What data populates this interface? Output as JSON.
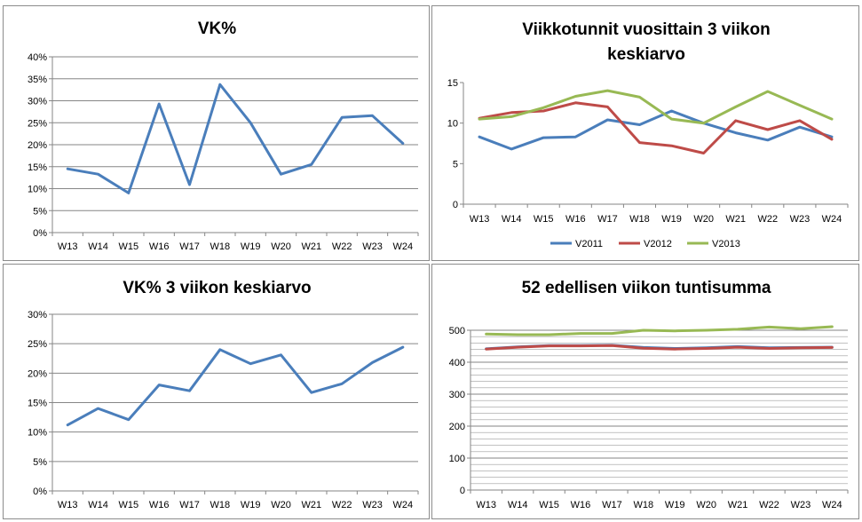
{
  "colors": {
    "blue": "#4a7ebb",
    "red": "#be4b48",
    "green": "#98b954",
    "grid": "#868686",
    "axis": "#868686"
  },
  "chart_data": [
    {
      "id": "vk",
      "type": "line",
      "title": [
        "VK%"
      ],
      "categories": [
        "W13",
        "W14",
        "W15",
        "W16",
        "W17",
        "W18",
        "W19",
        "W20",
        "W21",
        "W22",
        "W23",
        "W24"
      ],
      "ylim": [
        0,
        40
      ],
      "ystep": 5,
      "yformat": "percent",
      "grid": true,
      "legend": "none",
      "series": [
        {
          "color": "#4a7ebb",
          "values": [
            14.5,
            13.3,
            9.0,
            29.3,
            10.9,
            33.7,
            25.0,
            13.3,
            15.5,
            26.2,
            26.6,
            20.3
          ]
        }
      ]
    },
    {
      "id": "viikkotunnit",
      "type": "line",
      "title": [
        "Viikkotunnit vuosittain 3 viikon",
        "keskiarvo"
      ],
      "categories": [
        "W13",
        "W14",
        "W15",
        "W16",
        "W17",
        "W18",
        "W19",
        "W20",
        "W21",
        "W22",
        "W23",
        "W24"
      ],
      "ylim": [
        0,
        15
      ],
      "ystep": 5,
      "yformat": "number",
      "grid": false,
      "legend": "bottom",
      "series": [
        {
          "name": "V2011",
          "color": "#4a7ebb",
          "values": [
            8.3,
            6.8,
            8.2,
            8.3,
            10.4,
            9.8,
            11.5,
            10.0,
            8.8,
            7.9,
            9.5,
            8.3
          ]
        },
        {
          "name": "V2012",
          "color": "#be4b48",
          "values": [
            10.6,
            11.3,
            11.5,
            12.5,
            12.0,
            7.6,
            7.2,
            6.3,
            10.3,
            9.2,
            10.3,
            8.0
          ]
        },
        {
          "name": "V2013",
          "color": "#98b954",
          "values": [
            10.5,
            10.8,
            11.9,
            13.3,
            14.0,
            13.2,
            10.5,
            10.0,
            12.0,
            13.9,
            12.2,
            10.5
          ]
        }
      ]
    },
    {
      "id": "vk3",
      "type": "line",
      "title": [
        "VK% 3 viikon keskiarvo"
      ],
      "categories": [
        "W13",
        "W14",
        "W15",
        "W16",
        "W17",
        "W18",
        "W19",
        "W20",
        "W21",
        "W22",
        "W23",
        "W24"
      ],
      "ylim": [
        0,
        30
      ],
      "ystep": 5,
      "yformat": "percent",
      "grid": true,
      "legend": "none",
      "series": [
        {
          "color": "#4a7ebb",
          "values": [
            11.2,
            14.0,
            12.1,
            18.0,
            17.0,
            24.0,
            21.6,
            23.1,
            16.7,
            18.2,
            21.8,
            24.4
          ]
        }
      ]
    },
    {
      "id": "tuntisumma",
      "type": "line",
      "title": [
        "52 edellisen viikon tuntisumma"
      ],
      "categories": [
        "W13",
        "W14",
        "W15",
        "W16",
        "W17",
        "W18",
        "W19",
        "W20",
        "W21",
        "W22",
        "W23",
        "W24"
      ],
      "ylim": [
        0,
        500
      ],
      "ystep": 100,
      "yformat": "number",
      "grid": true,
      "minorgrid": 20,
      "legend": "none",
      "series": [
        {
          "color": "#4a7ebb",
          "values": [
            442,
            448,
            452,
            452,
            453,
            446,
            443,
            445,
            449,
            445,
            446,
            447
          ]
        },
        {
          "color": "#be4b48",
          "values": [
            441,
            447,
            451,
            451,
            452,
            444,
            441,
            443,
            447,
            443,
            445,
            446
          ]
        },
        {
          "color": "#98b954",
          "values": [
            488,
            486,
            486,
            490,
            490,
            500,
            498,
            500,
            503,
            510,
            505,
            511
          ]
        }
      ]
    }
  ]
}
